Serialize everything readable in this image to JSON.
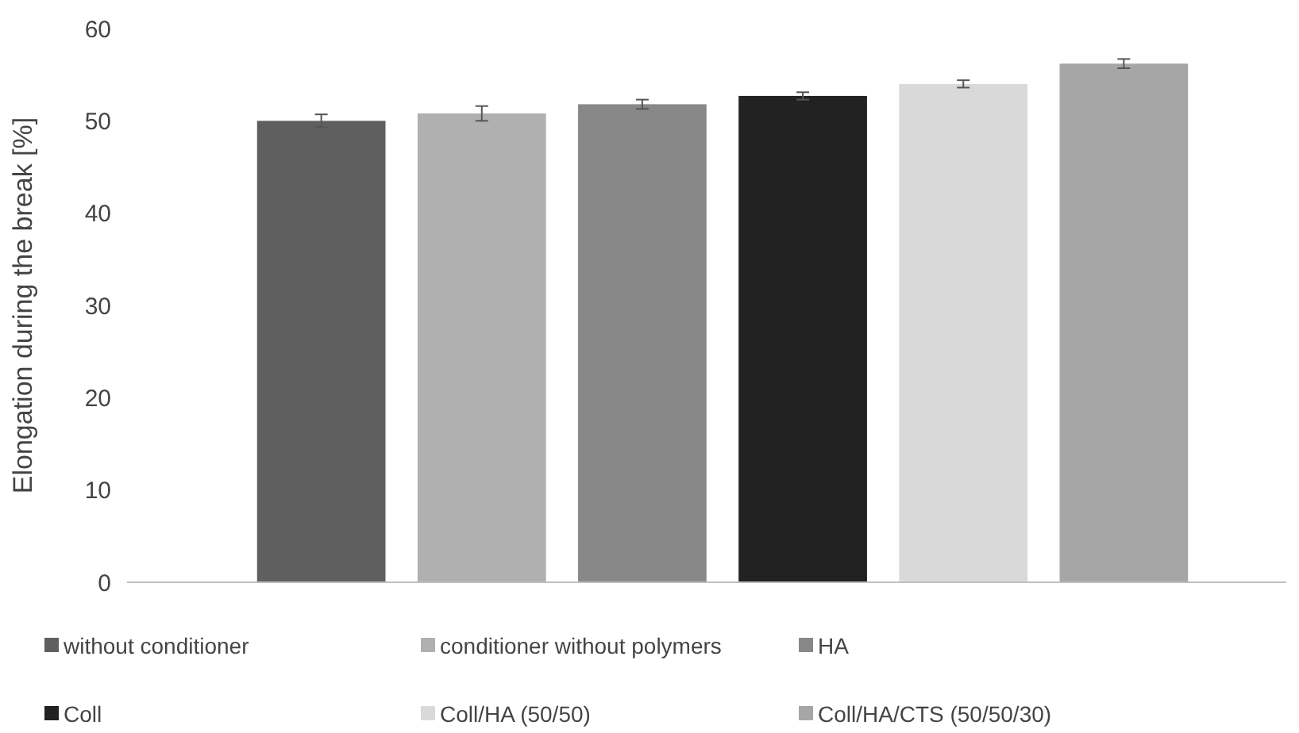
{
  "chart_data": {
    "type": "bar",
    "ylabel": "Elongation during the break [%]",
    "categories": [
      null
    ],
    "ylim": [
      0,
      60
    ],
    "yticks": [
      0,
      10,
      20,
      30,
      40,
      50,
      60
    ],
    "grid": false,
    "legend": "bottom",
    "series": [
      {
        "name": "without conditioner",
        "color": "#5f5f5f",
        "values": [
          50.0
        ],
        "errors": [
          0.7
        ]
      },
      {
        "name": "conditioner without polymers",
        "color": "#b0b0b0",
        "values": [
          50.8
        ],
        "errors": [
          0.8
        ]
      },
      {
        "name": "HA",
        "color": "#888888",
        "values": [
          51.8
        ],
        "errors": [
          0.5
        ]
      },
      {
        "name": "Coll",
        "color": "#222222",
        "values": [
          52.7
        ],
        "errors": [
          0.4
        ]
      },
      {
        "name": "Coll/HA (50/50)",
        "color": "#d9d9d9",
        "values": [
          54.0
        ],
        "errors": [
          0.4
        ]
      },
      {
        "name": "Coll/HA/CTS (50/50/30)",
        "color": "#a6a6a6",
        "values": [
          56.2
        ],
        "errors": [
          0.5
        ]
      }
    ]
  }
}
